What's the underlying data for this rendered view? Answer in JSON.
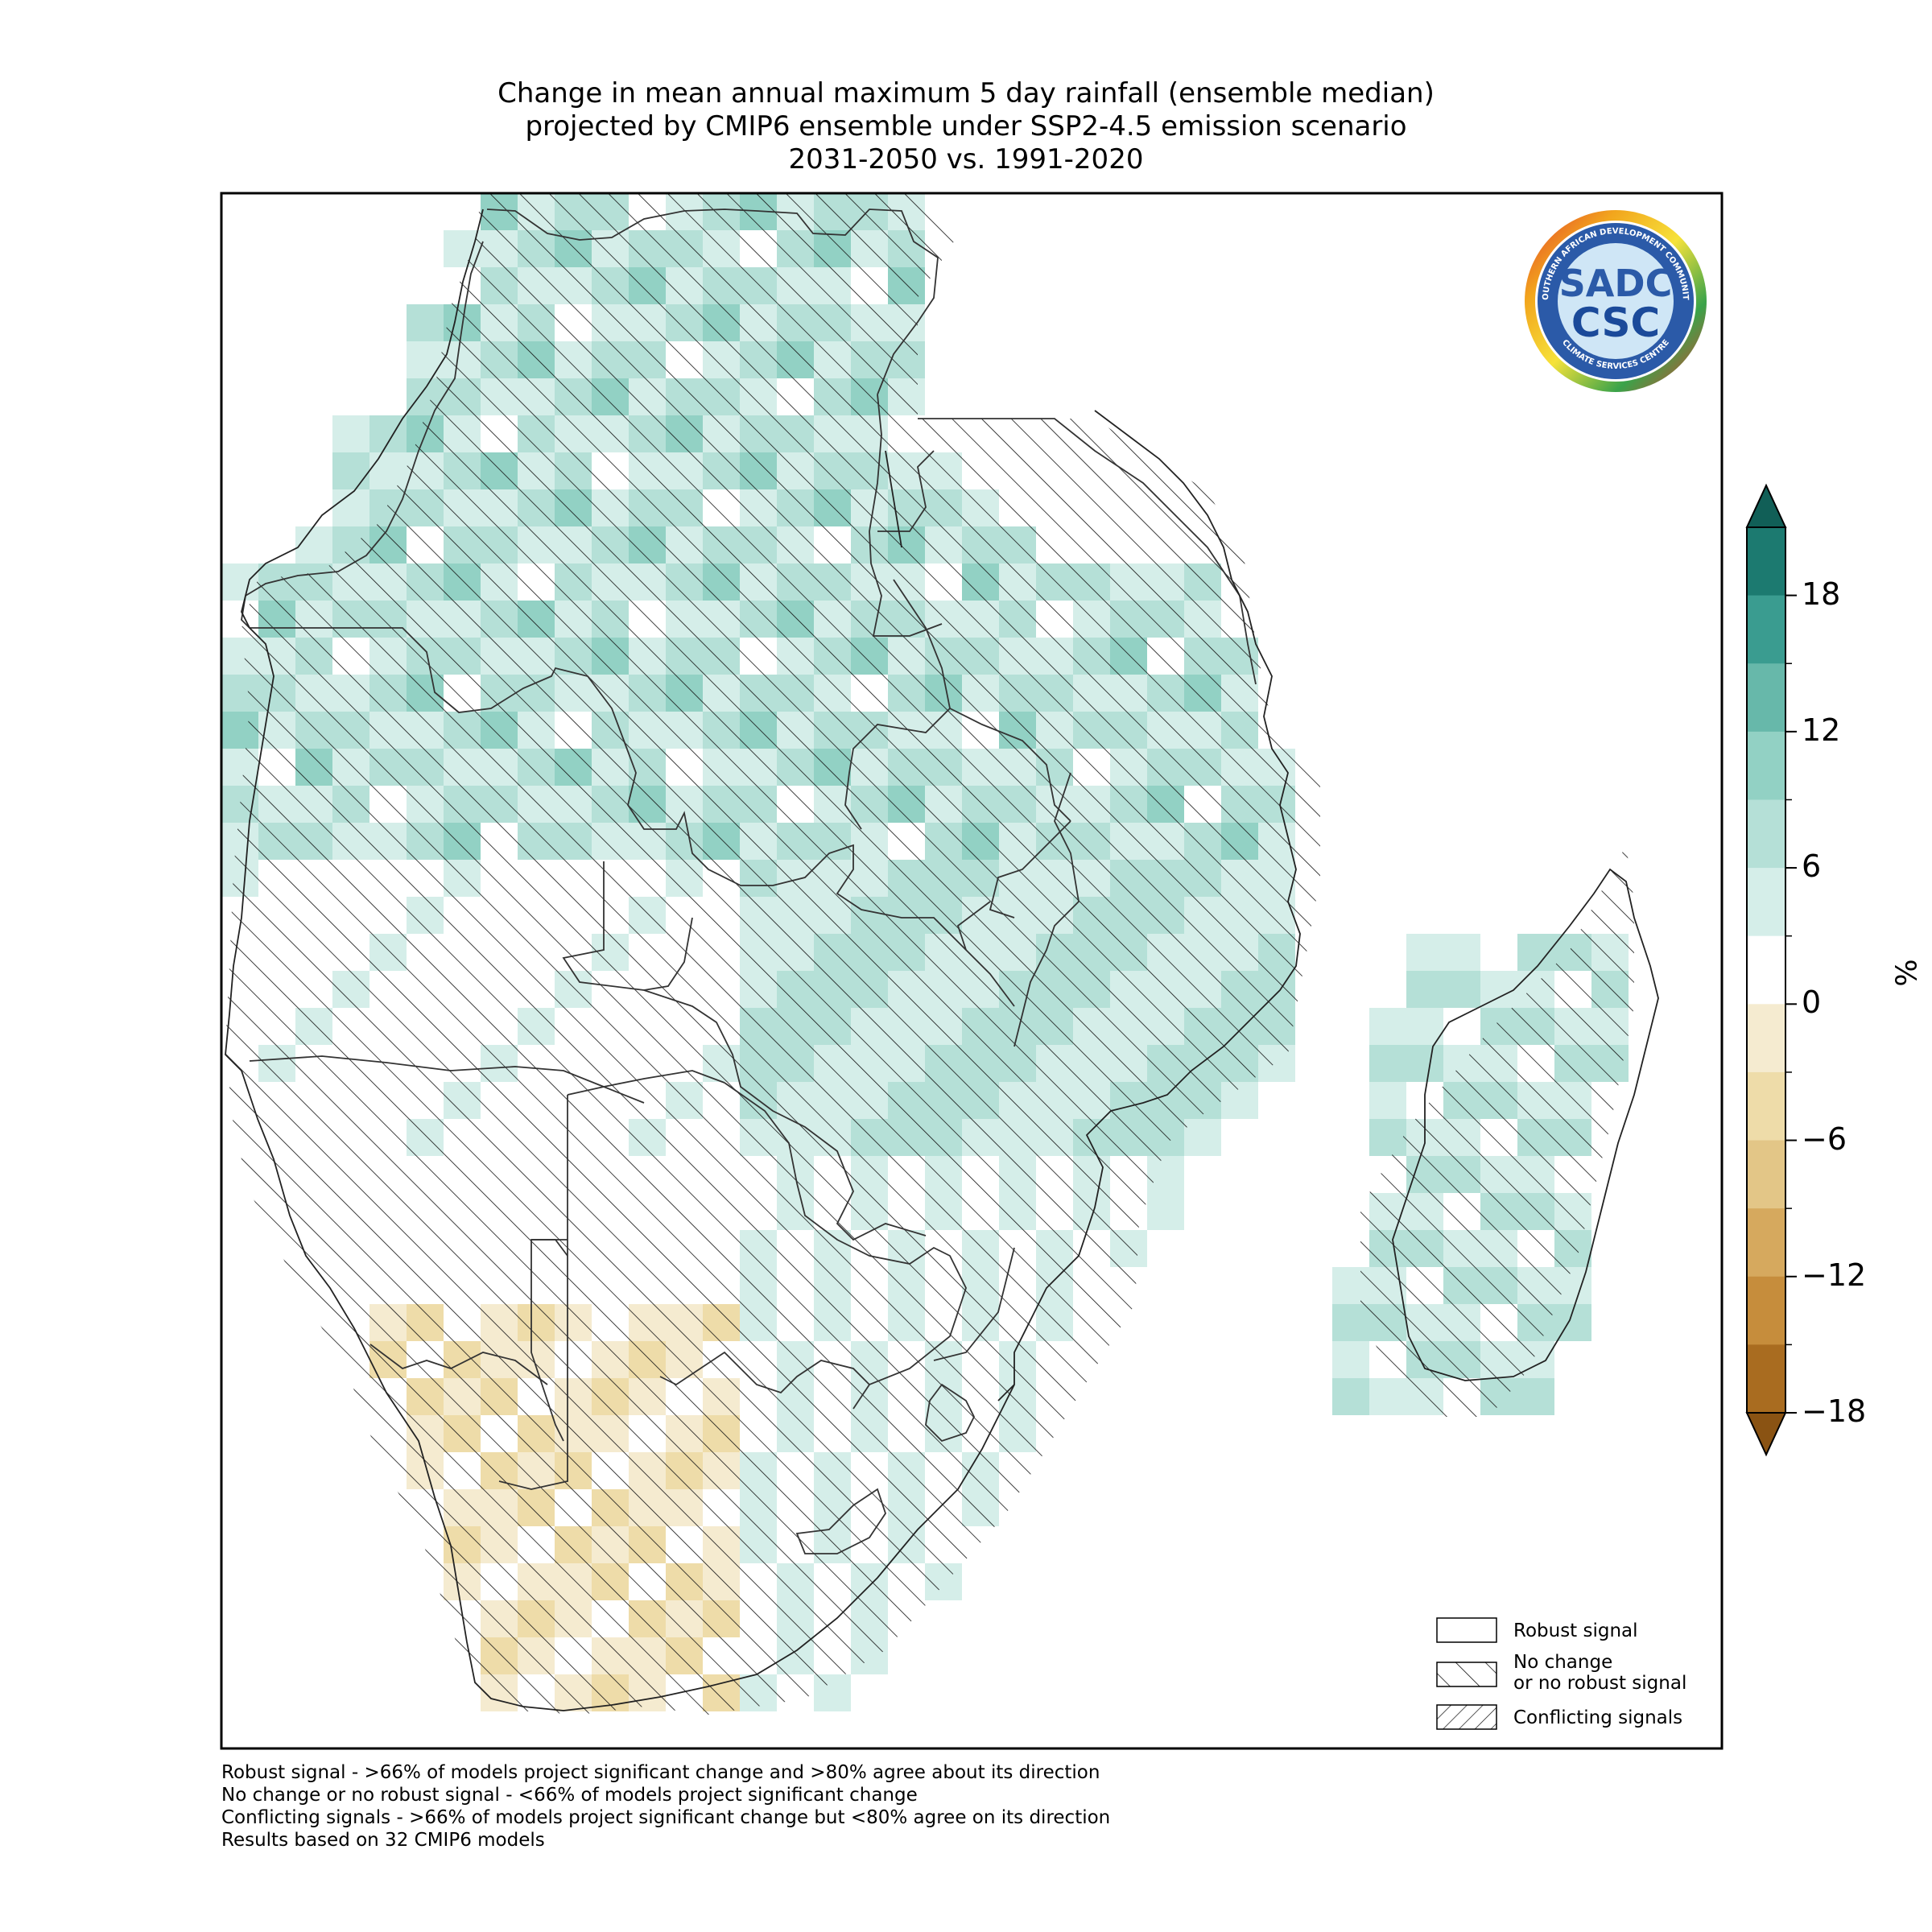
{
  "title": {
    "line1": "Change in mean annual maximum 5 day rainfall (ensemble median)",
    "line2": "projected by CMIP6 ensemble under SSP2-4.5 emission scenario",
    "line3": "2031-2050 vs. 1991-2020"
  },
  "logo": {
    "ring_text": "SOUTHERN AFRICAN DEVELOPMENT COMMUNITY",
    "ring_bottom_text": "CLIMATE SERVICES CENTRE",
    "sadc": "SADC",
    "csc": "CSC"
  },
  "colorbar": {
    "unit": "%",
    "tick_labels": [
      "18",
      "12",
      "6",
      "0",
      "−6",
      "−12",
      "−18"
    ],
    "colors": [
      "#1c7a70",
      "#3a9c90",
      "#67b8aa",
      "#92d1c4",
      "#b5e0d7",
      "#d5eee9",
      "#ffffff",
      "#f5ebd0",
      "#eedca9",
      "#e3c687",
      "#d6a95e",
      "#c68d3c",
      "#a96c20"
    ],
    "extend_top_color": "#115f57",
    "extend_bottom_color": "#8a5313"
  },
  "legend": {
    "items": [
      {
        "label": "Robust signal",
        "hatch": "none"
      },
      {
        "label": "No change\nor no robust signal",
        "hatch": "forward"
      },
      {
        "label": "Conflicting signals",
        "hatch": "backward"
      }
    ]
  },
  "footnotes": [
    "Robust signal - >66% of models project significant change and >80% agree about its direction",
    "No change or no robust signal - <66% of models project significant change",
    "Conflicting signals - >66% of models project significant change but <80% agree on its direction",
    "Results based on 32 CMIP6 models"
  ]
}
